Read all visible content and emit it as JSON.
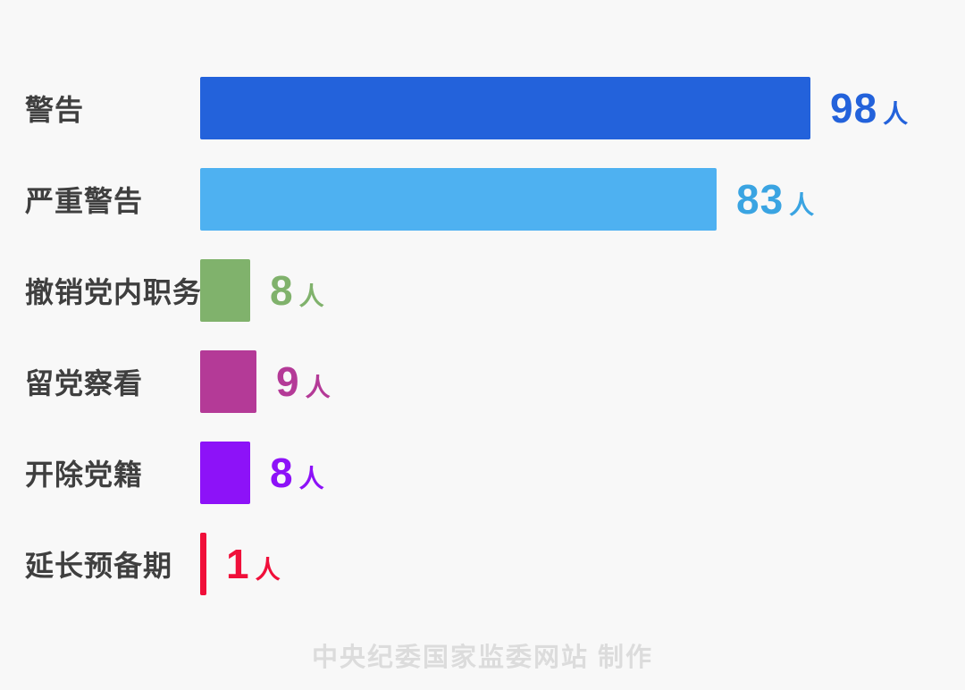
{
  "chart_data": {
    "type": "bar",
    "orientation": "horizontal",
    "title": "",
    "categories": [
      "警告",
      "严重警告",
      "撤销党内职务",
      "留党察看",
      "开除党籍",
      "延长预备期"
    ],
    "values": [
      98,
      83,
      8,
      9,
      8,
      1
    ],
    "unit": "人",
    "series": [
      {
        "name": "警告",
        "value": 98,
        "bar_color": "#2362DB",
        "value_color": "#2362DB"
      },
      {
        "name": "严重警告",
        "value": 83,
        "bar_color": "#4EB1F1",
        "value_color": "#3AA4E2"
      },
      {
        "name": "撤销党内职务",
        "value": 8,
        "bar_color": "#80B26C",
        "value_color": "#80B26C"
      },
      {
        "name": "留党察看",
        "value": 9,
        "bar_color": "#B43A97",
        "value_color": "#B43A97"
      },
      {
        "name": "开除党籍",
        "value": 8,
        "bar_color": "#8D12F8",
        "value_color": "#8D12F8"
      },
      {
        "name": "延长预备期",
        "value": 1,
        "bar_color": "#F00F3A",
        "value_color": "#F00F3A"
      }
    ],
    "xlim": [
      0,
      98
    ],
    "grid": false,
    "legend": false,
    "axis_labels_visible": false
  },
  "layout_colors": {
    "background": "#F8F8F8",
    "category_label": "#3F3F3F",
    "footer_text": "#DCDCDC"
  },
  "footer": {
    "text": "中央纪委国家监委网站 制作"
  }
}
